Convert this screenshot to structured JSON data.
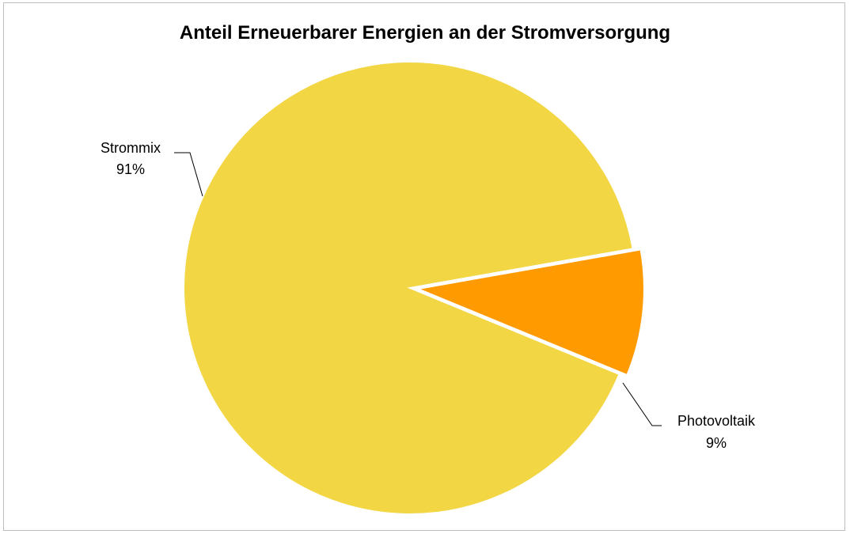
{
  "chart_data": {
    "type": "pie",
    "title": "Anteil Erneuerbarer Energien an der Stromversorgung",
    "slices": [
      {
        "label": "Strommix",
        "value": 91,
        "value_label": "91%",
        "color": "#F2D644"
      },
      {
        "label": "Photovoltaik",
        "value": 9,
        "value_label": "9%",
        "color": "#FF9B00",
        "exploded": true
      }
    ],
    "legend": "none"
  }
}
